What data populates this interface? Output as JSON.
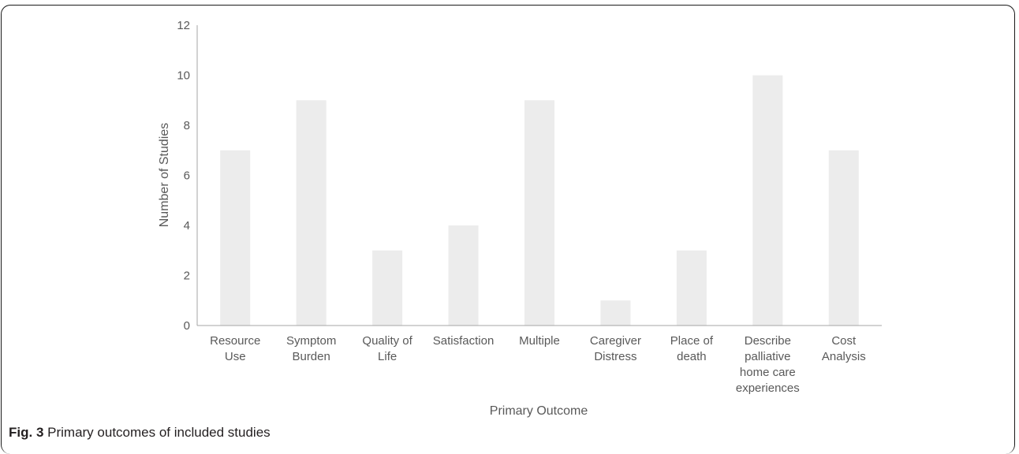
{
  "caption": {
    "label": "Fig. 3",
    "text": " Primary outcomes of included studies"
  },
  "chart_data": {
    "type": "bar",
    "categories": [
      [
        "Resource",
        "Use"
      ],
      [
        "Symptom",
        "Burden"
      ],
      [
        "Quality of",
        "Life"
      ],
      [
        "Satisfaction"
      ],
      [
        "Multiple"
      ],
      [
        "Caregiver",
        "Distress"
      ],
      [
        "Place of",
        "death"
      ],
      [
        "Describe",
        "palliative",
        "home care",
        "experiences"
      ],
      [
        "Cost",
        "Analysis"
      ]
    ],
    "values": [
      7,
      9,
      3,
      4,
      9,
      1,
      3,
      10,
      7
    ],
    "ylim": [
      0,
      12
    ],
    "yticks": [
      0,
      2,
      4,
      6,
      8,
      10,
      12
    ],
    "xlabel": "Primary Outcome",
    "ylabel": "Number of Studies",
    "bar_color": "#ececec",
    "axis_color": "#a6a6a6",
    "grid": false
  }
}
